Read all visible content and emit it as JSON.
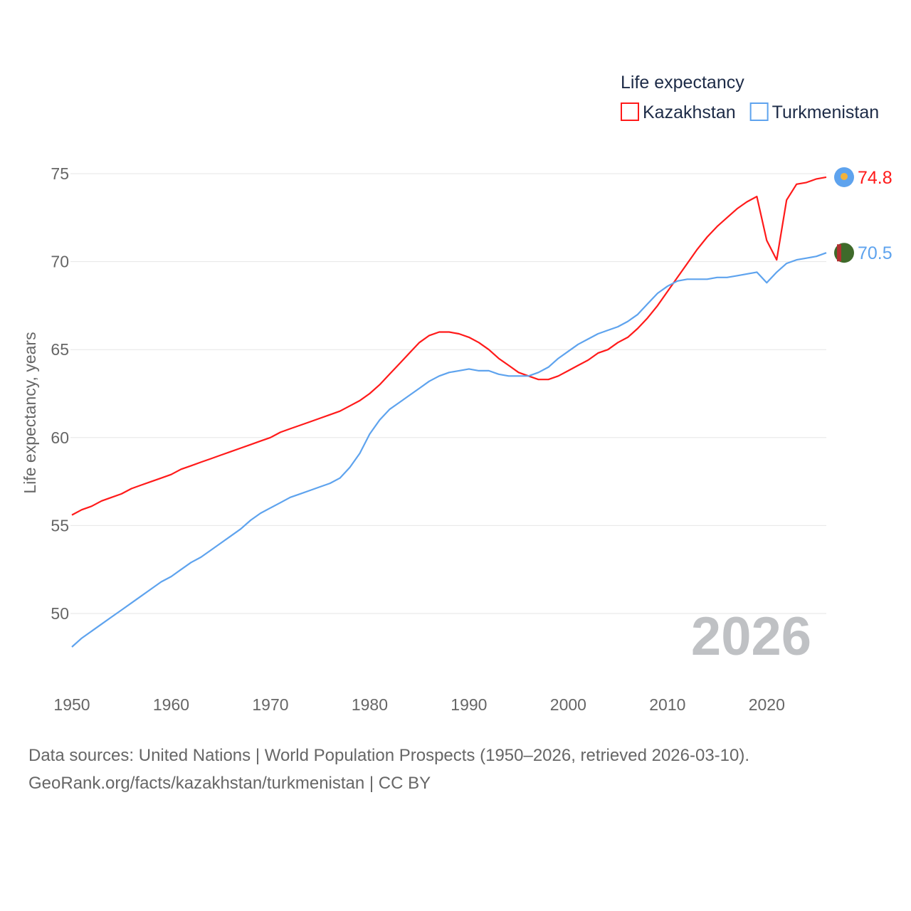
{
  "chart_data": {
    "type": "line",
    "title": "Life expectancy",
    "xlabel": "",
    "ylabel": "Life expectancy, years",
    "xlim": [
      1950,
      2026
    ],
    "ylim": [
      48,
      76
    ],
    "yticks": [
      50,
      55,
      60,
      65,
      70,
      75
    ],
    "xticks": [
      1950,
      1960,
      1970,
      1980,
      1990,
      2000,
      2010,
      2020
    ],
    "grid": true,
    "legend_position": "top-right",
    "watermark_year": "2026",
    "x": [
      1950,
      1951,
      1952,
      1953,
      1954,
      1955,
      1956,
      1957,
      1958,
      1959,
      1960,
      1961,
      1962,
      1963,
      1964,
      1965,
      1966,
      1967,
      1968,
      1969,
      1970,
      1971,
      1972,
      1973,
      1974,
      1975,
      1976,
      1977,
      1978,
      1979,
      1980,
      1981,
      1982,
      1983,
      1984,
      1985,
      1986,
      1987,
      1988,
      1989,
      1990,
      1991,
      1992,
      1993,
      1994,
      1995,
      1996,
      1997,
      1998,
      1999,
      2000,
      2001,
      2002,
      2003,
      2004,
      2005,
      2006,
      2007,
      2008,
      2009,
      2010,
      2011,
      2012,
      2013,
      2014,
      2015,
      2016,
      2017,
      2018,
      2019,
      2020,
      2021,
      2022,
      2023,
      2024,
      2025,
      2026
    ],
    "series": [
      {
        "name": "Kazakhstan",
        "color": "#ff1a1a",
        "end_label": "74.8",
        "values": [
          55.6,
          55.9,
          56.1,
          56.4,
          56.6,
          56.8,
          57.1,
          57.3,
          57.5,
          57.7,
          57.9,
          58.2,
          58.4,
          58.6,
          58.8,
          59.0,
          59.2,
          59.4,
          59.6,
          59.8,
          60.0,
          60.3,
          60.5,
          60.7,
          60.9,
          61.1,
          61.3,
          61.5,
          61.8,
          62.1,
          62.5,
          63.0,
          63.6,
          64.2,
          64.8,
          65.4,
          65.8,
          66.0,
          66.0,
          65.9,
          65.7,
          65.4,
          65.0,
          64.5,
          64.1,
          63.7,
          63.5,
          63.3,
          63.3,
          63.5,
          63.8,
          64.1,
          64.4,
          64.8,
          65.0,
          65.4,
          65.7,
          66.2,
          66.8,
          67.5,
          68.3,
          69.1,
          69.9,
          70.7,
          71.4,
          72.0,
          72.5,
          73.0,
          73.4,
          73.7,
          71.2,
          70.1,
          73.5,
          74.4,
          74.5,
          74.7,
          74.8
        ]
      },
      {
        "name": "Turkmenistan",
        "color": "#5ea3ee",
        "end_label": "70.5",
        "values": [
          48.1,
          48.6,
          49.0,
          49.4,
          49.8,
          50.2,
          50.6,
          51.0,
          51.4,
          51.8,
          52.1,
          52.5,
          52.9,
          53.2,
          53.6,
          54.0,
          54.4,
          54.8,
          55.3,
          55.7,
          56.0,
          56.3,
          56.6,
          56.8,
          57.0,
          57.2,
          57.4,
          57.7,
          58.3,
          59.1,
          60.2,
          61.0,
          61.6,
          62.0,
          62.4,
          62.8,
          63.2,
          63.5,
          63.7,
          63.8,
          63.9,
          63.8,
          63.8,
          63.6,
          63.5,
          63.5,
          63.5,
          63.7,
          64.0,
          64.5,
          64.9,
          65.3,
          65.6,
          65.9,
          66.1,
          66.3,
          66.6,
          67.0,
          67.6,
          68.2,
          68.6,
          68.9,
          69.0,
          69.0,
          69.0,
          69.1,
          69.1,
          69.2,
          69.3,
          69.4,
          68.8,
          69.4,
          69.9,
          70.1,
          70.2,
          70.3,
          70.5
        ]
      }
    ],
    "footer": [
      "Data sources: United Nations | World Population Prospects (1950–2026, retrieved 2026-03-10).",
      "GeoRank.org/facts/kazakhstan/turkmenistan | CC BY"
    ]
  }
}
